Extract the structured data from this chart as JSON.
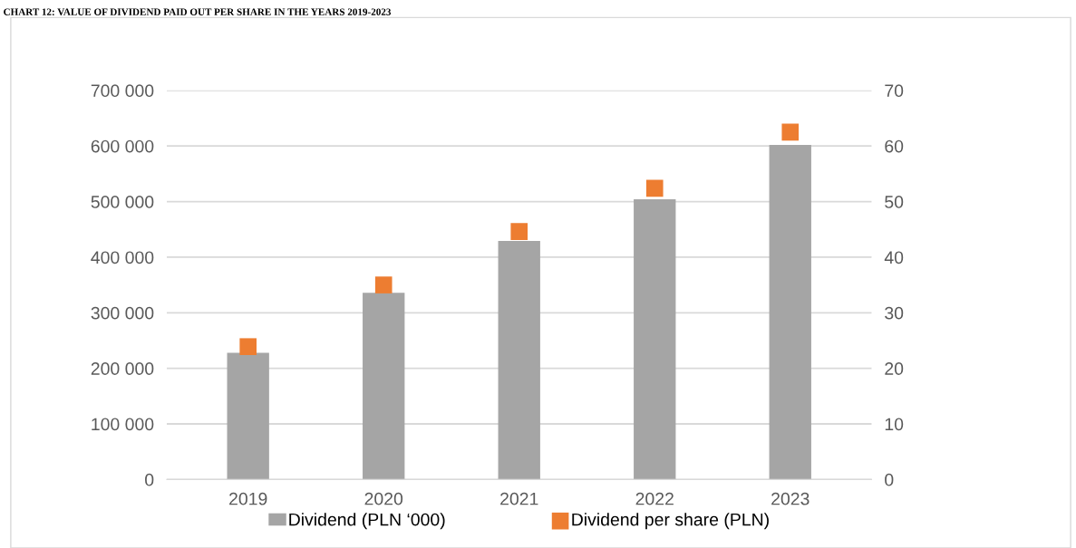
{
  "chart_data": {
    "type": "bar",
    "title": "CHART 12: VALUE OF DIVIDEND PAID OUT PER SHARE IN THE YEARS 2019-2023",
    "categories": [
      "2019",
      "2020",
      "2021",
      "2022",
      "2023"
    ],
    "series": [
      {
        "name": "Dividend (PLN ‘000)",
        "color": "#a5a5a5",
        "values": [
          228000,
          336000,
          429000,
          504000,
          602000
        ]
      },
      {
        "name": "Dividend per share (PLN)",
        "type": "scatter",
        "axis": "y2",
        "color": "#ed7d31",
        "marker": "square",
        "values": [
          23.9,
          35.0,
          44.6,
          52.4,
          62.5
        ]
      }
    ],
    "ylim": [
      0,
      700000
    ],
    "yticks": [
      {
        "value": 0,
        "label": "0"
      },
      {
        "value": 100000,
        "label": "100 000"
      },
      {
        "value": 200000,
        "label": "200 000"
      },
      {
        "value": 300000,
        "label": "300 000"
      },
      {
        "value": 400000,
        "label": "400 000"
      },
      {
        "value": 500000,
        "label": "500 000"
      },
      {
        "value": 600000,
        "label": "600 000"
      },
      {
        "value": 700000,
        "label": "700 000"
      }
    ],
    "y2lim": [
      0,
      70
    ],
    "y2ticks": [
      0,
      10,
      20,
      30,
      40,
      50,
      60,
      70
    ],
    "grid": "y",
    "legend": "bottom"
  }
}
